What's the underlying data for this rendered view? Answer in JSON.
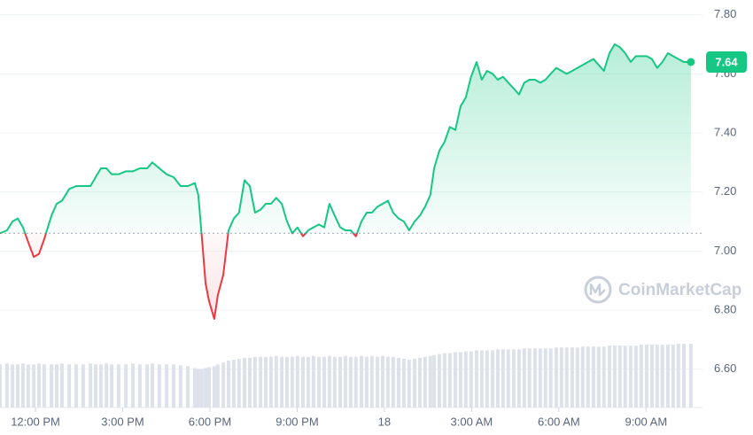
{
  "chart_data": {
    "type": "line",
    "watermark": "CoinMarketCap",
    "x": [
      10.78,
      11.02,
      11.21,
      11.39,
      11.57,
      11.75,
      11.94,
      12.12,
      12.3,
      12.55,
      12.73,
      12.91,
      13.16,
      13.4,
      13.64,
      13.89,
      14.07,
      14.25,
      14.44,
      14.62,
      14.86,
      15.11,
      15.35,
      15.59,
      15.84,
      16.02,
      16.26,
      16.51,
      16.75,
      16.99,
      17.24,
      17.48,
      17.6,
      17.72,
      17.85,
      17.97,
      18.15,
      18.27,
      18.46,
      18.64,
      18.82,
      19.0,
      19.19,
      19.37,
      19.55,
      19.74,
      19.92,
      20.1,
      20.28,
      20.47,
      20.65,
      20.83,
      21.01,
      21.2,
      21.38,
      21.56,
      21.75,
      21.93,
      22.11,
      22.29,
      22.48,
      22.66,
      22.84,
      23.02,
      23.21,
      23.39,
      23.57,
      23.76,
      23.94,
      24.12,
      24.3,
      24.49,
      24.67,
      24.85,
      25.04,
      25.22,
      25.4,
      25.58,
      25.71,
      25.89,
      26.07,
      26.25,
      26.44,
      26.62,
      26.8,
      26.98,
      27.17,
      27.35,
      27.53,
      27.72,
      27.9,
      28.08,
      28.26,
      28.45,
      28.63,
      28.81,
      28.99,
      29.18,
      29.36,
      29.54,
      29.72,
      29.91,
      30.09,
      30.27,
      30.46,
      30.64,
      30.82,
      31.0,
      31.19,
      31.37,
      31.55,
      31.74,
      31.92,
      32.1,
      32.28,
      32.47,
      32.65,
      32.83,
      33.02,
      33.2,
      33.38,
      33.56,
      33.75,
      33.93,
      34.11,
      34.3,
      34.54
    ],
    "values": [
      7.06,
      7.07,
      7.1,
      7.11,
      7.08,
      7.03,
      6.98,
      6.99,
      7.04,
      7.12,
      7.16,
      7.17,
      7.21,
      7.22,
      7.22,
      7.22,
      7.25,
      7.28,
      7.28,
      7.26,
      7.26,
      7.27,
      7.27,
      7.28,
      7.28,
      7.3,
      7.28,
      7.26,
      7.25,
      7.22,
      7.22,
      7.23,
      7.19,
      7.05,
      6.89,
      6.83,
      6.77,
      6.85,
      6.92,
      7.07,
      7.11,
      7.13,
      7.24,
      7.22,
      7.13,
      7.14,
      7.16,
      7.16,
      7.18,
      7.16,
      7.1,
      7.06,
      7.08,
      7.05,
      7.07,
      7.08,
      7.09,
      7.08,
      7.16,
      7.12,
      7.08,
      7.07,
      7.07,
      7.05,
      7.1,
      7.13,
      7.13,
      7.15,
      7.16,
      7.17,
      7.13,
      7.11,
      7.1,
      7.07,
      7.1,
      7.12,
      7.15,
      7.19,
      7.28,
      7.34,
      7.37,
      7.42,
      7.41,
      7.49,
      7.52,
      7.59,
      7.64,
      7.58,
      7.61,
      7.6,
      7.58,
      7.59,
      7.57,
      7.55,
      7.53,
      7.57,
      7.58,
      7.58,
      7.57,
      7.58,
      7.6,
      7.62,
      7.61,
      7.6,
      7.61,
      7.62,
      7.63,
      7.64,
      7.65,
      7.63,
      7.61,
      7.67,
      7.7,
      7.69,
      7.67,
      7.64,
      7.66,
      7.66,
      7.66,
      7.65,
      7.62,
      7.64,
      7.67,
      7.66,
      7.65,
      7.64,
      7.64
    ],
    "volume": [
      46,
      47,
      46,
      46,
      47,
      46,
      46,
      47,
      46,
      46,
      46,
      47,
      46,
      46,
      46,
      47,
      46,
      46,
      47,
      46,
      46,
      46,
      47,
      46,
      46,
      47,
      46,
      46,
      46,
      45,
      44,
      42,
      41,
      41,
      42,
      43,
      44,
      46,
      48,
      50,
      51,
      52,
      53,
      53,
      54,
      54,
      54,
      54,
      55,
      54,
      54,
      54,
      55,
      54,
      54,
      55,
      54,
      54,
      55,
      54,
      54,
      55,
      54,
      54,
      55,
      54,
      55,
      54,
      55,
      54,
      54,
      53,
      52,
      51,
      52,
      53,
      54,
      55,
      56,
      57,
      58,
      58,
      59,
      59,
      60,
      60,
      61,
      61,
      61,
      61,
      62,
      62,
      62,
      62,
      62,
      63,
      63,
      63,
      63,
      63,
      63,
      64,
      64,
      64,
      64,
      64,
      65,
      65,
      65,
      65,
      65,
      66,
      66,
      66,
      66,
      66,
      66,
      67,
      67,
      67,
      67,
      67,
      67,
      67,
      68,
      68,
      68
    ],
    "baseline": 7.06,
    "color": "#16c784",
    "down_color": "#ea3943",
    "volume_color": "#dde2ea",
    "xlim": [
      10.78,
      34.94
    ],
    "ylim": [
      6.47,
      7.85
    ],
    "xticks": [
      {
        "value": 12,
        "label": "12:00 PM"
      },
      {
        "value": 15,
        "label": "3:00 PM"
      },
      {
        "value": 18,
        "label": "6:00 PM"
      },
      {
        "value": 21,
        "label": "9:00 PM"
      },
      {
        "value": 24,
        "label": "18"
      },
      {
        "value": 27,
        "label": "3:00 AM"
      },
      {
        "value": 30,
        "label": "6:00 AM"
      },
      {
        "value": 33,
        "label": "9:00 AM"
      }
    ],
    "yticks": [
      {
        "value": 6.6,
        "label": "6.60"
      },
      {
        "value": 6.8,
        "label": "6.80"
      },
      {
        "value": 7.0,
        "label": "7.00"
      },
      {
        "value": 7.2,
        "label": "7.20"
      },
      {
        "value": 7.4,
        "label": "7.40"
      },
      {
        "value": 7.6,
        "label": "7.60"
      },
      {
        "value": 7.8,
        "label": "7.80"
      }
    ],
    "grid": true
  }
}
